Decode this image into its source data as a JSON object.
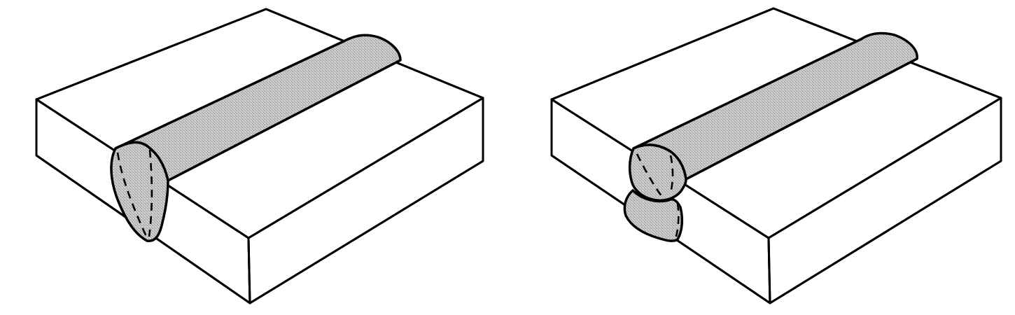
{
  "figure": {
    "panels": [
      {
        "id": "single-pass-weld"
      },
      {
        "id": "double-pass-weld"
      }
    ]
  },
  "colors": {
    "line": "#000000",
    "plate": "#ffffff",
    "weld_fill": "#bdbdbd",
    "weld_speckle": "#8a8a8a"
  }
}
